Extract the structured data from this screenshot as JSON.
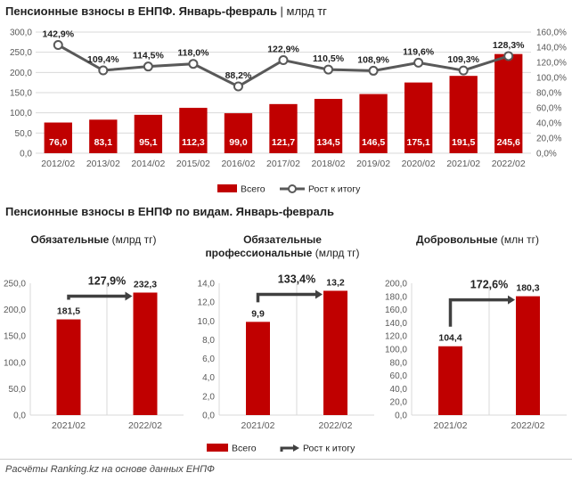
{
  "colors": {
    "bar": "#c00000",
    "line": "#595959",
    "grid": "#d9d9d9",
    "axis_text": "#595959",
    "arrow": "#404040"
  },
  "main": {
    "title": "Пенсионные взносы в ЕНПФ. Январь-февраль",
    "unit": " | млрд тг"
  },
  "section": {
    "title": "Пенсионные взносы в ЕНПФ по видам. Январь-февраль"
  },
  "footer": "Расчёты Ranking.kz на основе данных ЕНПФ",
  "chart_data": [
    {
      "type": "bar",
      "categories": [
        "2012/02",
        "2013/02",
        "2014/02",
        "2015/02",
        "2016/02",
        "2017/02",
        "2018/02",
        "2019/02",
        "2020/02",
        "2021/02",
        "2022/02"
      ],
      "series": [
        {
          "name": "Всего",
          "type": "bar",
          "values": [
            76.0,
            83.1,
            95.1,
            112.3,
            99.0,
            121.7,
            134.5,
            146.5,
            175.1,
            191.5,
            245.6
          ],
          "labels": [
            "76,0",
            "83,1",
            "95,1",
            "112,3",
            "99,0",
            "121,7",
            "134,5",
            "146,5",
            "175,1",
            "191,5",
            "245,6"
          ]
        },
        {
          "name": "Рост к итогу",
          "type": "line",
          "axis": "right",
          "values": [
            142.9,
            109.4,
            114.5,
            118.0,
            88.2,
            122.9,
            110.5,
            108.9,
            119.6,
            109.3,
            128.3
          ],
          "labels": [
            "142,9%",
            "109,4%",
            "114,5%",
            "118,0%",
            "88,2%",
            "122,9%",
            "110,5%",
            "108,9%",
            "119,6%",
            "109,3%",
            "128,3%"
          ]
        }
      ],
      "ylim": [
        0,
        300
      ],
      "y_ticks": [
        "0,0",
        "50,0",
        "100,0",
        "150,0",
        "200,0",
        "250,0",
        "300,0"
      ],
      "y2lim": [
        0,
        160
      ],
      "y2_ticks": [
        "0,0%",
        "20,0%",
        "40,0%",
        "60,0%",
        "80,0%",
        "100,0%",
        "120,0%",
        "140,0%",
        "160,0%"
      ],
      "legend_position": "bottom",
      "grid": true
    },
    {
      "type": "bar",
      "title": "Обязательные",
      "unit": " (млрд тг)",
      "categories": [
        "2021/02",
        "2022/02"
      ],
      "values": [
        181.5,
        232.3
      ],
      "labels": [
        "181,5",
        "232,3"
      ],
      "growth": "127,9%",
      "ylim": [
        0,
        250
      ],
      "y_ticks": [
        "0,0",
        "50,0",
        "100,0",
        "150,0",
        "200,0",
        "250,0"
      ]
    },
    {
      "type": "bar",
      "title": "Обязательные",
      "title2": "профессиональные",
      "unit": " (млрд тг)",
      "categories": [
        "2021/02",
        "2022/02"
      ],
      "values": [
        9.9,
        13.2
      ],
      "labels": [
        "9,9",
        "13,2"
      ],
      "growth": "133,4%",
      "ylim": [
        0,
        14
      ],
      "y_ticks": [
        "0,0",
        "2,0",
        "4,0",
        "6,0",
        "8,0",
        "10,0",
        "12,0",
        "14,0"
      ]
    },
    {
      "type": "bar",
      "title": "Добровольные",
      "unit": " (млн тг)",
      "categories": [
        "2021/02",
        "2022/02"
      ],
      "values": [
        104.4,
        180.3
      ],
      "labels": [
        "104,4",
        "180,3"
      ],
      "growth": "172,6%",
      "ylim": [
        0,
        200
      ],
      "y_ticks": [
        "0,0",
        "20,0",
        "40,0",
        "60,0",
        "80,0",
        "100,0",
        "120,0",
        "140,0",
        "160,0",
        "180,0",
        "200,0"
      ]
    }
  ],
  "legend2": {
    "bar": "Всего",
    "arrow": "Рост к итогу"
  }
}
